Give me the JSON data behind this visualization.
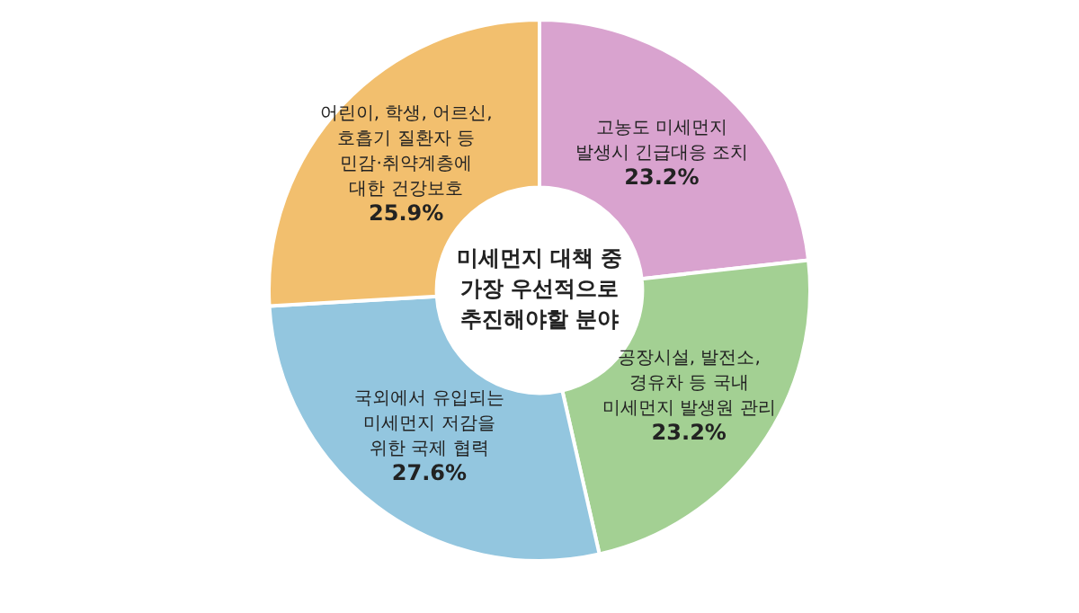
{
  "chart_data": {
    "type": "donut",
    "title": "미세먼지 대책 중\n가장 우선적으로\n추진해야할 분야",
    "categories": [
      "고농도 미세먼지\n발생시 긴급대응 조치",
      "공장시설, 발전소,\n경유차 등 국내\n미세먼지 발생원 관리",
      "국외에서 유입되는\n미세먼지 저감을\n위한 국제 협력",
      "어린이, 학생, 어르신,\n호흡기 질환자 등\n민감·취약계층에\n대한 건강보호"
    ],
    "values": [
      23.2,
      23.2,
      27.6,
      25.9
    ],
    "colors": [
      "#d9a3cf",
      "#a3d093",
      "#93c6df",
      "#f2bf6e"
    ],
    "value_labels": [
      "23.2%",
      "23.2%",
      "27.6%",
      "25.9%"
    ],
    "legend": false
  }
}
